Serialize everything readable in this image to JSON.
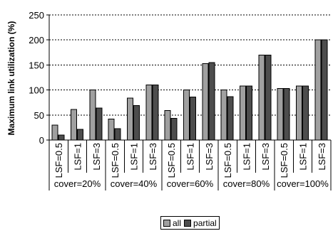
{
  "chart_data": {
    "type": "bar",
    "ylabel": "Maximum link utilization (%)",
    "ylim": [
      0,
      250
    ],
    "yticks": [
      "0",
      "50",
      "100",
      "150",
      "200",
      "250"
    ],
    "grid": true,
    "legend_position": "bottom",
    "categories": [
      "LSF=0.5",
      "LSF=1",
      "LSF=3",
      "LSF=0.5",
      "LSF=1",
      "LSF=3",
      "LSF=0.5",
      "LSF=1",
      "LSF=3",
      "LSF=0.5",
      "LSF=1",
      "LSF=3",
      "LSF=0.5",
      "LSF=1",
      "LSF=3"
    ],
    "groups": [
      "cover=20%",
      "cover=40%",
      "cover=60%",
      "cover=80%",
      "cover=100%"
    ],
    "series": [
      {
        "name": "all",
        "color": "#a0a0a0",
        "values": [
          30,
          61,
          100,
          42,
          84,
          110,
          59,
          100,
          153,
          100,
          108,
          170,
          103,
          108,
          200
        ]
      },
      {
        "name": "partial",
        "color": "#4d4d4d",
        "values": [
          10,
          21,
          64,
          23,
          69,
          110,
          43,
          86,
          155,
          87,
          108,
          170,
          103,
          108,
          200
        ]
      }
    ]
  }
}
